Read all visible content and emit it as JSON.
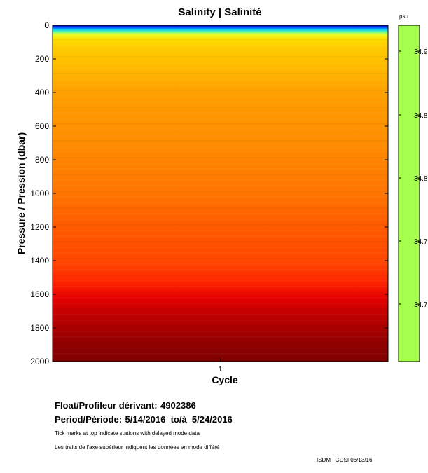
{
  "chart_data": {
    "type": "heatmap",
    "title": "Salinity | Salinité",
    "xlabel": "Cycle",
    "ylabel": "Pressure / Pression (dbar)",
    "x_ticks": [
      "1"
    ],
    "y_ticks": [
      0,
      200,
      400,
      600,
      800,
      1000,
      1200,
      1400,
      1600,
      1800,
      2000
    ],
    "ylim": [
      0,
      2000
    ],
    "y_inverted": true,
    "colorbar": {
      "unit": "psu",
      "tick_labels": [
        "34.9",
        "34.8",
        "34.8",
        "34.7",
        "34.7"
      ],
      "fill_color": "#a6ff4d"
    },
    "profile": [
      {
        "p": 0,
        "color": "#00008b"
      },
      {
        "p": 10,
        "color": "#0033ff"
      },
      {
        "p": 25,
        "color": "#00c8ff"
      },
      {
        "p": 40,
        "color": "#66ff99"
      },
      {
        "p": 55,
        "color": "#e8ff2a"
      },
      {
        "p": 80,
        "color": "#ffe000"
      },
      {
        "p": 130,
        "color": "#ffcc00"
      },
      {
        "p": 250,
        "color": "#ffba00"
      },
      {
        "p": 400,
        "color": "#ffa000"
      },
      {
        "p": 700,
        "color": "#ff8c00"
      },
      {
        "p": 1000,
        "color": "#ff7400"
      },
      {
        "p": 1200,
        "color": "#ff5a00"
      },
      {
        "p": 1400,
        "color": "#ff4800"
      },
      {
        "p": 1520,
        "color": "#ff2800"
      },
      {
        "p": 1620,
        "color": "#e60000"
      },
      {
        "p": 1760,
        "color": "#b40000"
      },
      {
        "p": 1900,
        "color": "#8e0000"
      },
      {
        "p": 2000,
        "color": "#800000"
      }
    ]
  },
  "info": {
    "float_label": "Float/Profileur dérivant:",
    "float_value": "4902386",
    "period_label": "Period/Période:",
    "period_value": "5/14/2016  to/à  5/24/2016",
    "note_en": "Tick marks at top indicate stations with delayed mode data",
    "note_fr": "Les traits de l'axe supérieur indiquent les données en mode différé",
    "credit": "ISDM | GDSI  06/13/16"
  }
}
